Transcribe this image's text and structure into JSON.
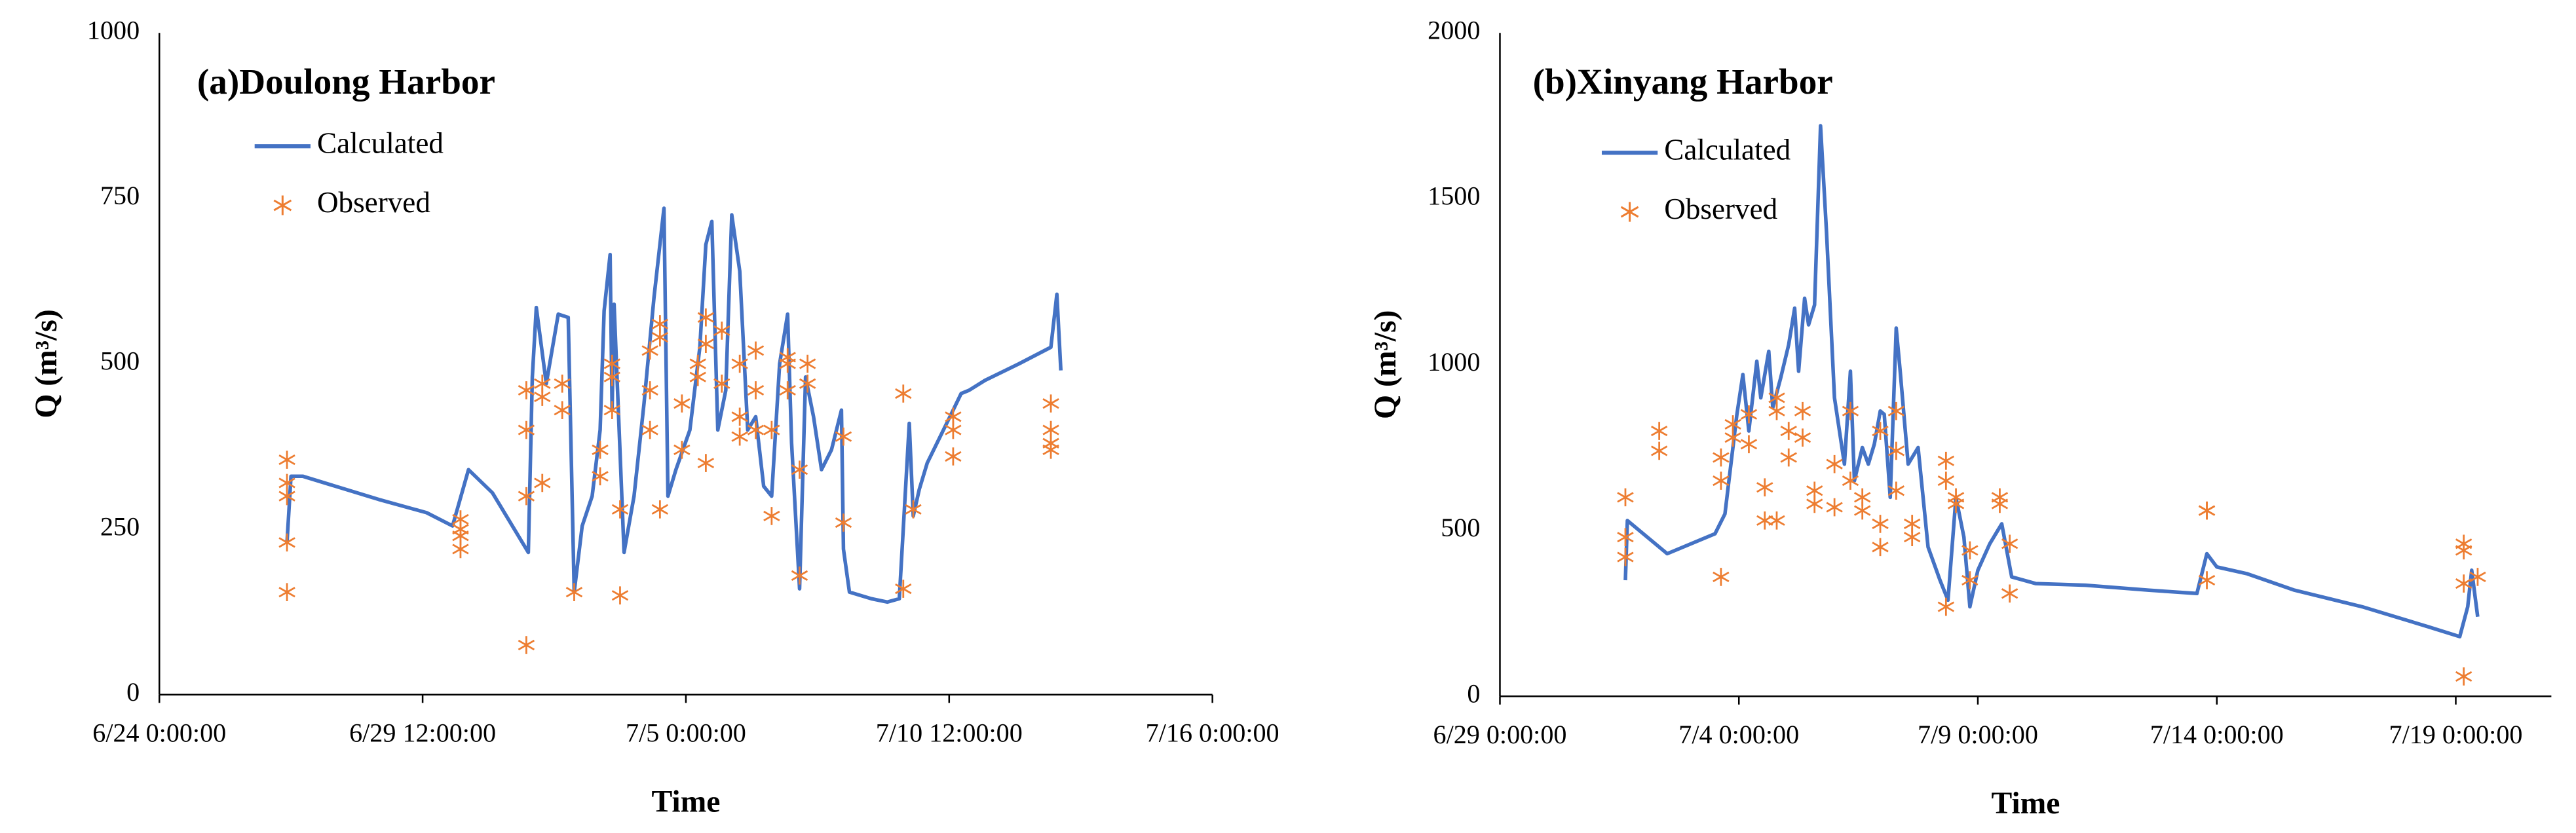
{
  "chart_data": [
    {
      "type": "line",
      "title": "(a)Doulong Harbor",
      "xlabel": "Time",
      "ylabel": "Q (m³/s)",
      "xlim": [
        "6/24 0:00:00",
        "7/16 0:00:00"
      ],
      "xticks": [
        "6/24 0:00:00",
        "6/29 12:00:00",
        "7/5 0:00:00",
        "7/10 12:00:00",
        "7/16 0:00:00"
      ],
      "ylim": [
        0,
        1000
      ],
      "yticks": [
        0,
        250,
        500,
        750,
        1000
      ],
      "grid": false,
      "series": [
        {
          "name": "Calculated",
          "type": "line",
          "color": "#4472c4",
          "x": [
            "6/26 16:00:00",
            "6/26 18:00:00",
            "6/27 0:00:00",
            "6/27 13:00:00",
            "6/28 14:00:00",
            "6/29 14:00:00",
            "6/30 3:00:00",
            "6/30 11:00:00",
            "6/30 23:00:00",
            "7/1 17:00:00",
            "7/1 19:00:00",
            "7/1 21:00:00",
            "7/2 2:00:00",
            "7/2 8:00:00",
            "7/2 13:00:00",
            "7/2 16:00:00",
            "7/2 20:00:00",
            "7/3 1:00:00",
            "7/3 5:00:00",
            "7/3 7:00:00",
            "7/3 10:00:00",
            "7/3 11:00:00",
            "7/3 12:00:00",
            "7/3 17:00:00",
            "7/3 22:00:00",
            "7/4 3:00:00",
            "7/4 8:00:00",
            "7/4 13:00:00",
            "7/4 15:00:00",
            "7/4 19:00:00",
            "7/5 2:00:00",
            "7/5 7:00:00",
            "7/5 10:00:00",
            "7/5 13:00:00",
            "7/5 16:00:00",
            "7/5 20:00:00",
            "7/5 23:00:00",
            "7/6 3:00:00",
            "7/6 7:00:00",
            "7/6 11:00:00",
            "7/6 15:00:00",
            "7/6 19:00:00",
            "7/6 23:00:00",
            "7/7 3:00:00",
            "7/7 5:00:00",
            "7/7 9:00:00",
            "7/7 12:00:00",
            "7/7 16:00:00",
            "7/7 20:00:00",
            "7/8 1:00:00",
            "7/8 6:00:00",
            "7/8 7:00:00",
            "7/8 10:00:00",
            "7/8 21:00:00",
            "7/9 5:00:00",
            "7/9 11:00:00",
            "7/9 16:00:00",
            "7/9 18:00:00",
            "7/9 21:00:00",
            "7/10 1:00:00",
            "7/10 14:00:00",
            "7/10 18:00:00",
            "7/10 22:00:00",
            "7/11 6:00:00",
            "7/11 23:00:00",
            "7/12 15:00:00",
            "7/12 18:00:00",
            "7/12 20:00:00"
          ],
          "values": [
            230,
            330,
            330,
            318,
            295,
            275,
            255,
            340,
            305,
            215,
            480,
            585,
            470,
            575,
            570,
            155,
            255,
            300,
            400,
            580,
            665,
            430,
            590,
            215,
            300,
            440,
            600,
            735,
            300,
            340,
            400,
            525,
            680,
            715,
            400,
            460,
            725,
            640,
            400,
            420,
            315,
            300,
            500,
            575,
            380,
            160,
            480,
            420,
            340,
            370,
            430,
            220,
            155,
            145,
            140,
            145,
            410,
            270,
            310,
            350,
            430,
            455,
            460,
            475,
            500,
            525,
            605,
            490
          ]
        },
        {
          "name": "Observed",
          "type": "scatter",
          "marker": "asterisk",
          "color": "#ed7d31",
          "x": [
            "6/26 16:00:00",
            "6/26 16:00:00",
            "6/26 16:00:00",
            "6/26 16:00:00",
            "6/26 16:00:00",
            "6/30 7:00:00",
            "6/30 7:00:00",
            "6/30 7:00:00",
            "6/30 7:00:00",
            "7/1 16:00:00",
            "7/1 16:00:00",
            "7/1 16:00:00",
            "7/1 16:00:00",
            "7/2 0:00:00",
            "7/2 0:00:00",
            "7/2 0:00:00",
            "7/2 10:00:00",
            "7/2 10:00:00",
            "7/2 16:00:00",
            "7/3 5:00:00",
            "7/3 5:00:00",
            "7/3 11:00:00",
            "7/3 11:00:00",
            "7/3 11:00:00",
            "7/3 15:00:00",
            "7/3 15:00:00",
            "7/4 6:00:00",
            "7/4 6:00:00",
            "7/4 6:00:00",
            "7/4 11:00:00",
            "7/4 11:00:00",
            "7/4 11:00:00",
            "7/4 22:00:00",
            "7/4 22:00:00",
            "7/5 6:00:00",
            "7/5 6:00:00",
            "7/5 10:00:00",
            "7/5 10:00:00",
            "7/5 10:00:00",
            "7/5 18:00:00",
            "7/5 18:00:00",
            "7/6 3:00:00",
            "7/6 3:00:00",
            "7/6 3:00:00",
            "7/6 11:00:00",
            "7/6 11:00:00",
            "7/6 11:00:00",
            "7/6 19:00:00",
            "7/6 19:00:00",
            "7/7 3:00:00",
            "7/7 3:00:00",
            "7/7 3:00:00",
            "7/7 9:00:00",
            "7/7 9:00:00",
            "7/7 13:00:00",
            "7/7 13:00:00",
            "7/8 7:00:00",
            "7/8 7:00:00",
            "7/9 13:00:00",
            "7/9 13:00:00",
            "7/9 18:00:00",
            "7/10 14:00:00",
            "7/10 14:00:00",
            "7/10 14:00:00",
            "7/12 15:00:00",
            "7/12 15:00:00",
            "7/12 15:00:00",
            "7/12 15:00:00"
          ],
          "values": [
            230,
            155,
            300,
            320,
            355,
            265,
            240,
            220,
            250,
            75,
            300,
            400,
            460,
            450,
            470,
            320,
            470,
            430,
            155,
            330,
            370,
            480,
            500,
            430,
            150,
            280,
            400,
            460,
            520,
            540,
            560,
            280,
            370,
            440,
            480,
            500,
            570,
            530,
            350,
            550,
            470,
            420,
            390,
            500,
            520,
            460,
            400,
            270,
            400,
            510,
            500,
            460,
            180,
            340,
            470,
            500,
            390,
            260,
            160,
            455,
            280,
            400,
            360,
            420,
            370,
            440,
            400,
            380
          ]
        }
      ]
    },
    {
      "type": "line",
      "title": "(b)Xinyang Harbor",
      "xlabel": "Time",
      "ylabel": "Q (m³/s)",
      "xlim": [
        "6/29 0:00:00",
        "7/21 0:00:00"
      ],
      "xticks": [
        "6/29 0:00:00",
        "7/4 0:00:00",
        "7/9 0:00:00",
        "7/14 0:00:00",
        "7/19 0:00:00"
      ],
      "ylim": [
        0,
        2000
      ],
      "yticks": [
        0,
        500,
        1000,
        1500,
        2000
      ],
      "grid": false,
      "series": [
        {
          "name": "Calculated",
          "type": "line",
          "color": "#4472c4",
          "x": [
            "7/1 15:00:00",
            "7/1 16:00:00",
            "7/2 12:00:00",
            "7/3 12:00:00",
            "7/3 17:00:00",
            "7/3 23:00:00",
            "7/4 2:00:00",
            "7/4 5:00:00",
            "7/4 9:00:00",
            "7/4 11:00:00",
            "7/4 15:00:00",
            "7/4 17:00:00",
            "7/4 21:00:00",
            "7/5 1:00:00",
            "7/5 4:00:00",
            "7/5 6:00:00",
            "7/5 9:00:00",
            "7/5 11:00:00",
            "7/5 14:00:00",
            "7/5 17:00:00",
            "7/5 20:00:00",
            "7/6 0:00:00",
            "7/6 5:00:00",
            "7/6 8:00:00",
            "7/6 10:00:00",
            "7/6 14:00:00",
            "7/6 17:00:00",
            "7/6 20:00:00",
            "7/6 23:00:00",
            "7/7 1:00:00",
            "7/7 4:00:00",
            "7/7 7:00:00",
            "7/7 9:00:00",
            "7/7 13:00:00",
            "7/7 18:00:00",
            "7/7 23:00:00",
            "7/8 5:00:00",
            "7/8 9:00:00",
            "7/8 13:00:00",
            "7/8 17:00:00",
            "7/8 20:00:00",
            "7/9 0:00:00",
            "7/9 6:00:00",
            "7/9 12:00:00",
            "7/9 17:00:00",
            "7/10 5:00:00",
            "7/11 6:00:00",
            "7/12 14:00:00",
            "7/13 14:00:00",
            "7/13 19:00:00",
            "7/14 0:00:00",
            "7/14 15:00:00",
            "7/15 15:00:00",
            "7/17 1:00:00",
            "7/18 10:00:00",
            "7/19 2:00:00",
            "7/19 6:00:00",
            "7/19 8:00:00",
            "7/19 11:00:00"
          ],
          "values": [
            350,
            530,
            430,
            490,
            550,
            850,
            970,
            800,
            1010,
            900,
            1040,
            870,
            960,
            1060,
            1170,
            980,
            1200,
            1120,
            1180,
            1720,
            1400,
            900,
            700,
            980,
            650,
            750,
            700,
            760,
            860,
            850,
            600,
            1110,
            980,
            700,
            750,
            450,
            350,
            290,
            600,
            480,
            270,
            380,
            460,
            520,
            360,
            340,
            335,
            320,
            310,
            430,
            390,
            370,
            320,
            270,
            210,
            180,
            270,
            380,
            240
          ]
        },
        {
          "name": "Observed",
          "type": "scatter",
          "marker": "asterisk",
          "color": "#ed7d31",
          "x": [
            "7/1 15:00:00",
            "7/1 15:00:00",
            "7/1 15:00:00",
            "7/2 8:00:00",
            "7/2 8:00:00",
            "7/3 15:00:00",
            "7/3 15:00:00",
            "7/3 15:00:00",
            "7/3 21:00:00",
            "7/3 21:00:00",
            "7/4 5:00:00",
            "7/4 5:00:00",
            "7/4 13:00:00",
            "7/4 13:00:00",
            "7/4 19:00:00",
            "7/4 19:00:00",
            "7/4 19:00:00",
            "7/5 1:00:00",
            "7/5 1:00:00",
            "7/5 8:00:00",
            "7/5 8:00:00",
            "7/5 14:00:00",
            "7/5 14:00:00",
            "7/6 0:00:00",
            "7/6 0:00:00",
            "7/6 8:00:00",
            "7/6 8:00:00",
            "7/6 14:00:00",
            "7/6 14:00:00",
            "7/6 23:00:00",
            "7/6 23:00:00",
            "7/6 23:00:00",
            "7/7 7:00:00",
            "7/7 7:00:00",
            "7/7 7:00:00",
            "7/7 15:00:00",
            "7/7 15:00:00",
            "7/8 8:00:00",
            "7/8 8:00:00",
            "7/8 8:00:00",
            "7/8 13:00:00",
            "7/8 13:00:00",
            "7/8 20:00:00",
            "7/8 20:00:00",
            "7/9 11:00:00",
            "7/9 11:00:00",
            "7/9 16:00:00",
            "7/9 16:00:00",
            "7/13 19:00:00",
            "7/13 19:00:00",
            "7/13 19:00:00",
            "7/19 4:00:00",
            "7/19 4:00:00",
            "7/19 4:00:00",
            "7/19 4:00:00",
            "7/19 11:00:00"
          ],
          "values": [
            420,
            480,
            600,
            800,
            740,
            360,
            650,
            720,
            780,
            820,
            850,
            760,
            630,
            530,
            860,
            530,
            900,
            720,
            800,
            780,
            860,
            580,
            620,
            570,
            700,
            860,
            650,
            560,
            600,
            450,
            520,
            800,
            740,
            860,
            620,
            520,
            480,
            270,
            650,
            710,
            600,
            580,
            440,
            350,
            600,
            580,
            460,
            310,
            560,
            560,
            350,
            60,
            340,
            460,
            440,
            360
          ]
        }
      ]
    }
  ]
}
